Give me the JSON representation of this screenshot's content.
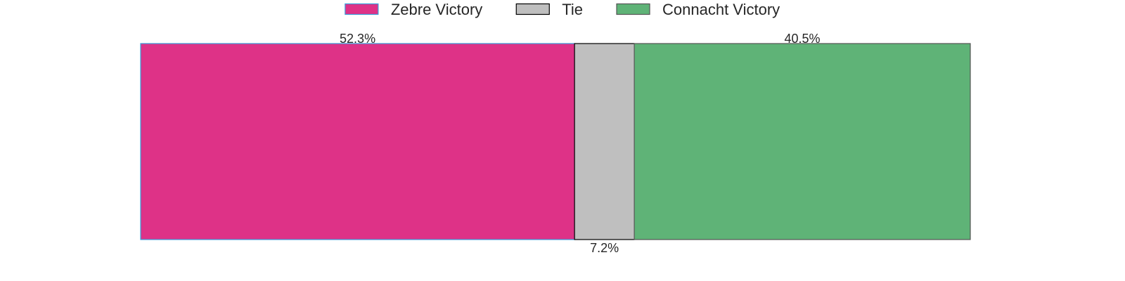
{
  "chart_data": {
    "type": "bar",
    "orientation": "horizontal",
    "stacked": true,
    "title": "",
    "xlabel": "",
    "ylabel": "",
    "xlim": [
      0,
      100
    ],
    "grid": false,
    "legend_position": "top-center",
    "series": [
      {
        "name": "Zebre Victory",
        "value": 52.3,
        "label": "52.3%",
        "label_position": "above",
        "color": "#de3287",
        "edge_color": "#3a9bd9"
      },
      {
        "name": "Tie",
        "value": 7.2,
        "label": "7.2%",
        "label_position": "below",
        "color": "#bfbfbf",
        "edge_color": "#000000"
      },
      {
        "name": "Connacht Victory",
        "value": 40.5,
        "label": "40.5%",
        "label_position": "above",
        "color": "#5fb377",
        "edge_color": "#555555"
      }
    ]
  }
}
